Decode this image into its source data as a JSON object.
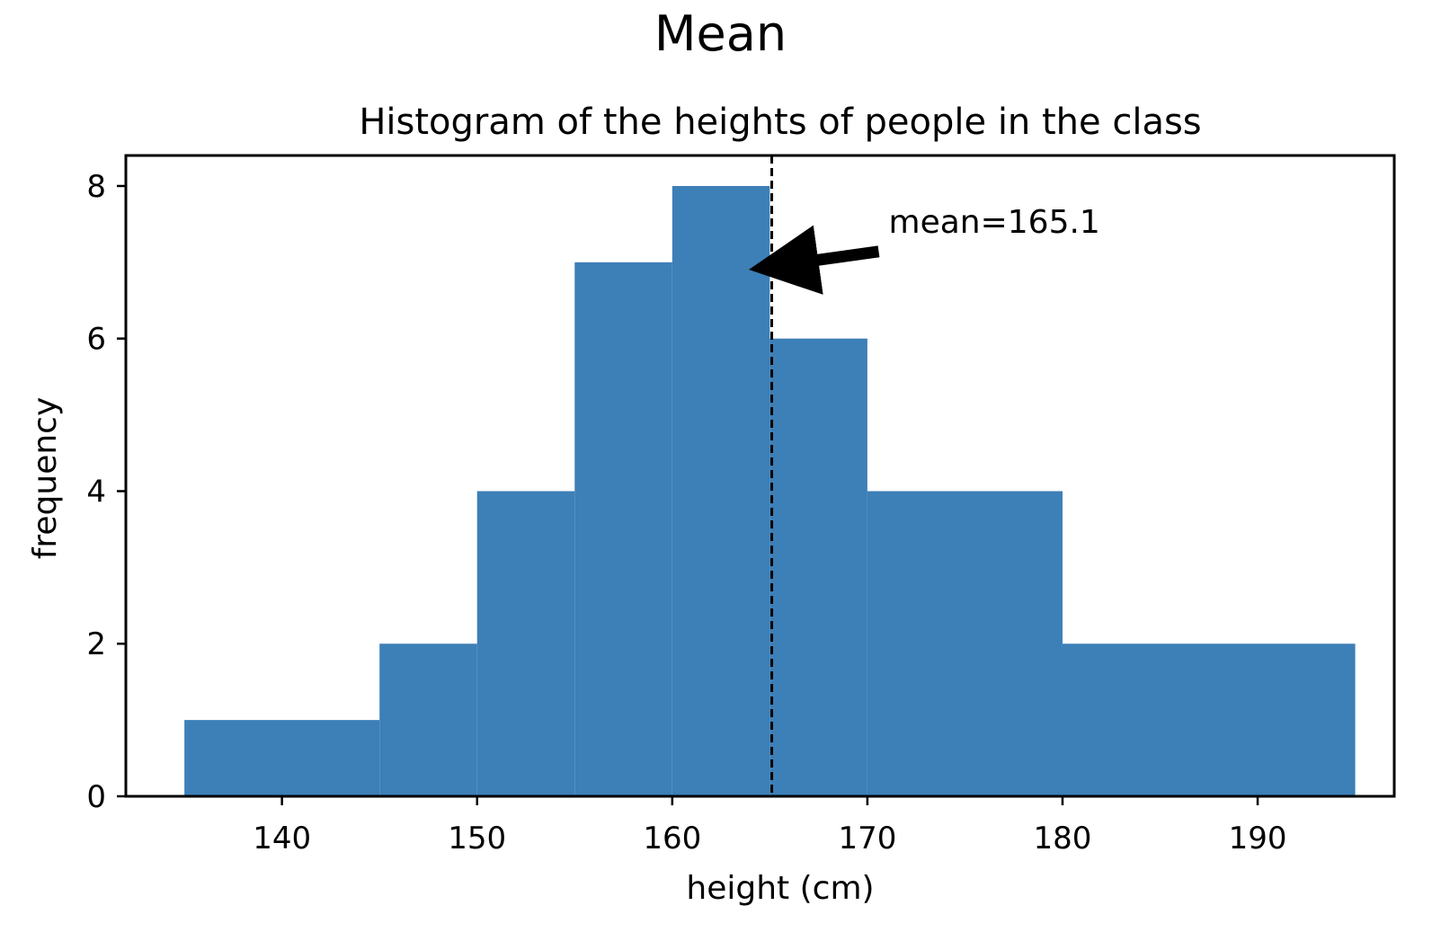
{
  "page": {
    "heading": "Mean"
  },
  "chart_data": {
    "type": "bar",
    "subtype": "histogram",
    "title": "Histogram of the heights of people in the class",
    "xlabel": "height (cm)",
    "ylabel": "frequency",
    "xlim": [
      132,
      197
    ],
    "ylim": [
      0,
      8.4
    ],
    "x_ticks": [
      140,
      150,
      160,
      170,
      180,
      190
    ],
    "y_ticks": [
      0,
      2,
      4,
      6,
      8
    ],
    "bins": [
      {
        "start": 135,
        "end": 145,
        "count": 1
      },
      {
        "start": 145,
        "end": 150,
        "count": 2
      },
      {
        "start": 150,
        "end": 155,
        "count": 4
      },
      {
        "start": 155,
        "end": 160,
        "count": 7
      },
      {
        "start": 160,
        "end": 165,
        "count": 8
      },
      {
        "start": 165,
        "end": 170,
        "count": 6
      },
      {
        "start": 170,
        "end": 180,
        "count": 4
      },
      {
        "start": 180,
        "end": 195,
        "count": 2
      }
    ],
    "bar_color": "#3d7fb7",
    "mean_line": {
      "x": 165.1,
      "style": "dashed"
    },
    "annotation": {
      "text": "mean=165.1",
      "points_to": {
        "x": 165.1,
        "y": 7
      }
    },
    "grid": false,
    "legend": "none"
  }
}
